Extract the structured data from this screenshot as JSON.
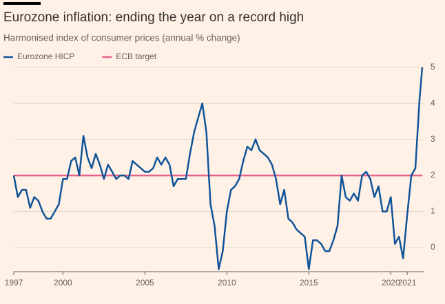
{
  "chart_data": {
    "type": "line",
    "title": "Eurozone inflation: ending the year on a record high",
    "subtitle": "Harmonised index of consumer prices (annual % change)",
    "x": [
      1997,
      1997.25,
      1997.5,
      1997.75,
      1998,
      1998.25,
      1998.5,
      1998.75,
      1999,
      1999.25,
      1999.5,
      1999.75,
      2000,
      2000.25,
      2000.5,
      2000.75,
      2001,
      2001.25,
      2001.5,
      2001.75,
      2002,
      2002.25,
      2002.5,
      2002.75,
      2003,
      2003.25,
      2003.5,
      2003.75,
      2004,
      2004.25,
      2004.5,
      2004.75,
      2005,
      2005.25,
      2005.5,
      2005.75,
      2006,
      2006.25,
      2006.5,
      2006.75,
      2007,
      2007.25,
      2007.5,
      2007.75,
      2008,
      2008.25,
      2008.5,
      2008.75,
      2009,
      2009.25,
      2009.5,
      2009.75,
      2010,
      2010.25,
      2010.5,
      2010.75,
      2011,
      2011.25,
      2011.5,
      2011.75,
      2012,
      2012.25,
      2012.5,
      2012.75,
      2013,
      2013.25,
      2013.5,
      2013.75,
      2014,
      2014.25,
      2014.5,
      2014.75,
      2015,
      2015.25,
      2015.5,
      2015.75,
      2016,
      2016.25,
      2016.5,
      2016.75,
      2017,
      2017.25,
      2017.5,
      2017.75,
      2018,
      2018.25,
      2018.5,
      2018.75,
      2019,
      2019.25,
      2019.5,
      2019.75,
      2020,
      2020.25,
      2020.5,
      2020.75,
      2021,
      2021.25,
      2021.5,
      2021.75,
      2021.92
    ],
    "series": [
      {
        "name": "Eurozone HICP",
        "color": "#0f5499",
        "values": [
          2.0,
          1.4,
          1.6,
          1.6,
          1.1,
          1.4,
          1.3,
          1.0,
          0.8,
          0.8,
          1.0,
          1.2,
          1.9,
          1.9,
          2.4,
          2.5,
          2.0,
          3.1,
          2.5,
          2.2,
          2.6,
          2.3,
          1.9,
          2.3,
          2.1,
          1.9,
          2.0,
          2.0,
          1.9,
          2.4,
          2.3,
          2.2,
          2.1,
          2.1,
          2.2,
          2.5,
          2.3,
          2.5,
          2.3,
          1.7,
          1.9,
          1.9,
          1.9,
          2.6,
          3.2,
          3.6,
          4.0,
          3.2,
          1.2,
          0.6,
          -0.6,
          -0.1,
          1.0,
          1.6,
          1.7,
          1.9,
          2.4,
          2.8,
          2.7,
          3.0,
          2.7,
          2.6,
          2.5,
          2.3,
          1.9,
          1.2,
          1.6,
          0.8,
          0.7,
          0.5,
          0.4,
          0.3,
          -0.6,
          0.2,
          0.2,
          0.1,
          -0.1,
          -0.1,
          0.2,
          0.6,
          2.0,
          1.4,
          1.3,
          1.5,
          1.3,
          2.0,
          2.1,
          1.9,
          1.4,
          1.7,
          1.0,
          1.0,
          1.4,
          0.1,
          0.3,
          -0.3,
          0.9,
          2.0,
          2.2,
          4.1,
          5.0
        ]
      },
      {
        "name": "ECB target",
        "color": "#e8618c",
        "values": [
          2,
          2,
          2,
          2,
          2,
          2,
          2,
          2,
          2,
          2,
          2,
          2,
          2,
          2,
          2,
          2,
          2,
          2,
          2,
          2,
          2,
          2,
          2,
          2,
          2,
          2,
          2,
          2,
          2,
          2,
          2,
          2,
          2,
          2,
          2,
          2,
          2,
          2,
          2,
          2,
          2,
          2,
          2,
          2,
          2,
          2,
          2,
          2,
          2,
          2,
          2,
          2,
          2,
          2,
          2,
          2,
          2,
          2,
          2,
          2,
          2,
          2,
          2,
          2,
          2,
          2,
          2,
          2,
          2,
          2,
          2,
          2,
          2,
          2,
          2,
          2,
          2,
          2,
          2,
          2,
          2,
          2,
          2,
          2,
          2,
          2,
          2,
          2,
          2,
          2,
          2,
          2,
          2,
          2,
          2,
          2,
          2,
          2,
          2,
          2,
          2
        ]
      }
    ],
    "xlim": [
      1997,
      2021.92
    ],
    "xticks": [
      1997,
      2000,
      2005,
      2010,
      2015,
      2020,
      2021
    ],
    "ylim": [
      -0.67,
      5.15
    ],
    "yticks": [
      0,
      1,
      2,
      3,
      4,
      5
    ],
    "grid": true
  }
}
